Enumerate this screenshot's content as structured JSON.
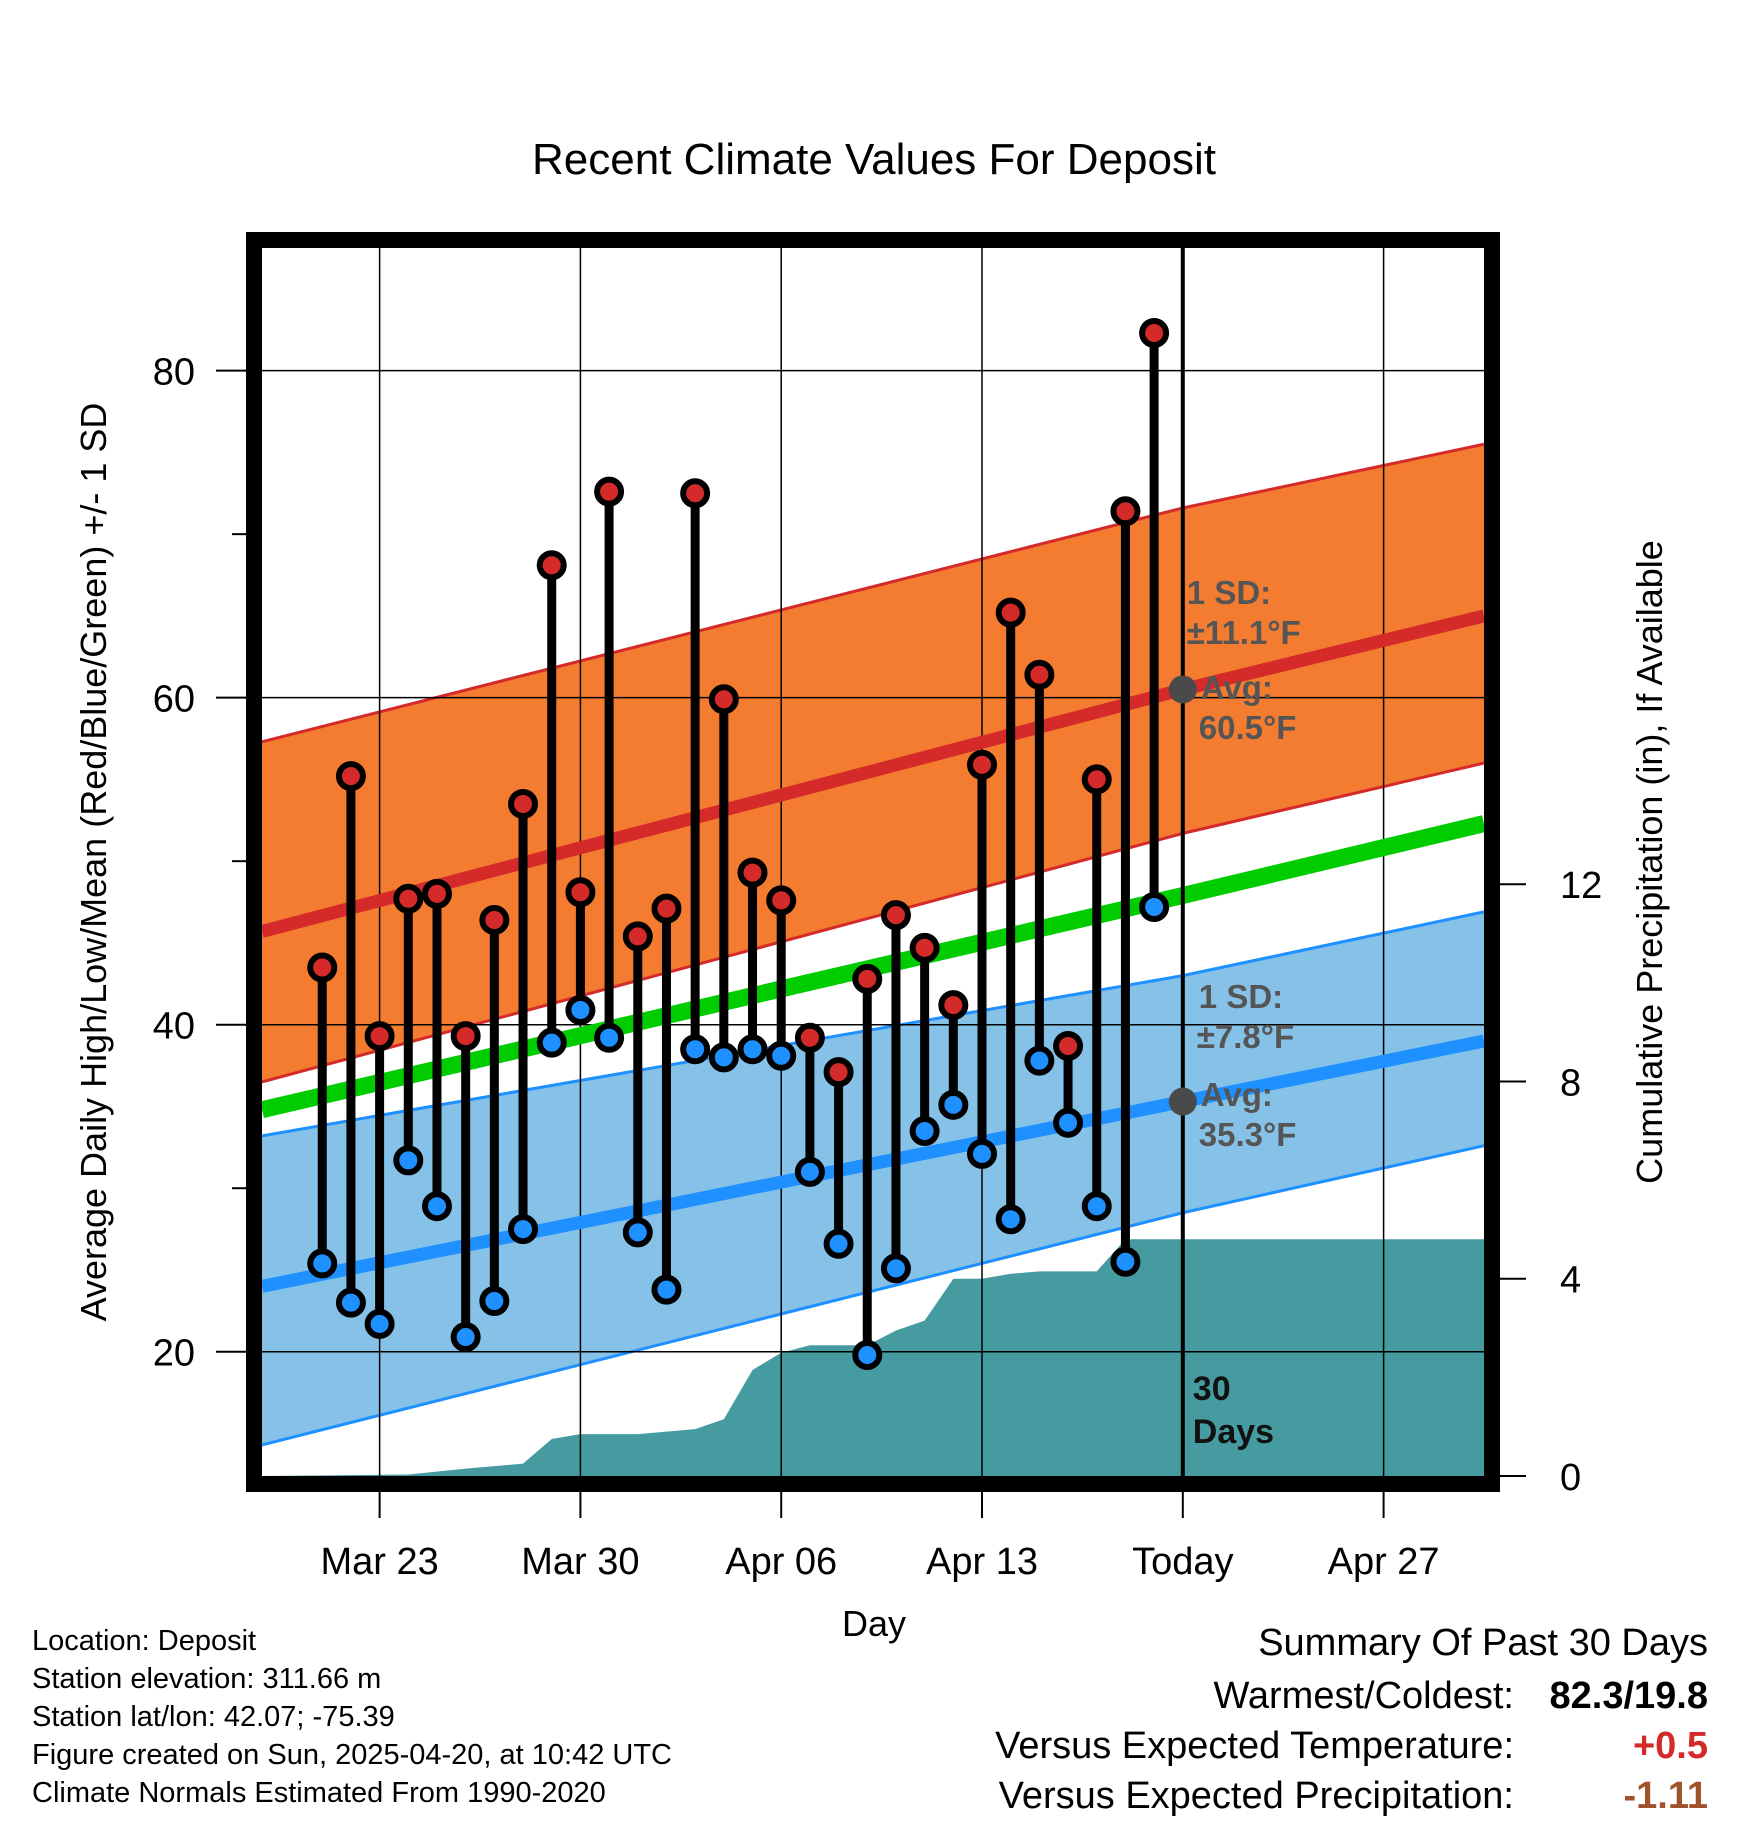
{
  "chart_data": {
    "type": "line",
    "title": "Recent Climate Values For Deposit",
    "xlabel": "Day",
    "ylabel": "Average Daily High/Low/Mean (Red/Blue/Green) +/- 1 SD",
    "ylabel_right": "Cumulative Precipitation (in), If Available",
    "ylim": [
      12.4,
      87.5
    ],
    "yticks": [
      20,
      40,
      60,
      80
    ],
    "ylim_right": [
      0,
      24.9
    ],
    "yticks_right": [
      0,
      4,
      8,
      12
    ],
    "xlim_days": [
      -32.1,
      10.5
    ],
    "x_ticks": [
      {
        "day": -28,
        "label": "Mar 23"
      },
      {
        "day": -21,
        "label": "Mar 30"
      },
      {
        "day": -14,
        "label": "Apr 06"
      },
      {
        "day": -7,
        "label": "Apr 13"
      },
      {
        "day": 0,
        "label": "Today"
      },
      {
        "day": 7,
        "label": "Apr 27"
      }
    ],
    "grid": true,
    "days": [
      -30,
      -29,
      -28,
      -27,
      -26,
      -25,
      -24,
      -23,
      -22,
      -21,
      -20,
      -19,
      -18,
      -17,
      -16,
      -15,
      -14,
      -13,
      -12,
      -11,
      -10,
      -9,
      -8,
      -7,
      -6,
      -5,
      -4,
      -3,
      -2,
      -1
    ],
    "daily_high": [
      43.5,
      55.2,
      39.3,
      47.7,
      48.0,
      39.3,
      46.4,
      53.5,
      68.1,
      48.1,
      72.6,
      45.4,
      47.1,
      72.5,
      59.9,
      49.3,
      47.6,
      39.2,
      37.1,
      42.8,
      46.7,
      44.7,
      41.2,
      55.9,
      65.2,
      61.4,
      38.7,
      55.0,
      71.4,
      82.3
    ],
    "daily_low": [
      25.4,
      23.0,
      21.7,
      31.7,
      28.9,
      20.9,
      23.1,
      27.5,
      38.9,
      40.9,
      39.2,
      27.3,
      23.8,
      38.5,
      38.0,
      38.5,
      38.1,
      31.0,
      26.6,
      19.8,
      25.1,
      33.5,
      35.1,
      32.1,
      28.1,
      37.8,
      34.0,
      28.9,
      25.5,
      47.2
    ],
    "normals": {
      "days": [
        -32.1,
        0,
        10.5
      ],
      "high_mean": [
        45.7,
        60.5,
        65.0
      ],
      "high_upper": [
        57.3,
        71.6,
        75.5
      ],
      "high_lower": [
        36.5,
        51.7,
        56.0
      ],
      "mean": [
        34.8,
        47.9,
        52.3
      ],
      "low_mean": [
        24.0,
        35.3,
        39.0
      ],
      "low_upper": [
        33.2,
        43.0,
        46.9
      ],
      "low_lower": [
        14.3,
        28.5,
        32.6
      ]
    },
    "precip_days": [
      -32.1,
      -27,
      -25,
      -23,
      -22,
      -21,
      -19,
      -17,
      -16,
      -15,
      -14,
      -13,
      -11,
      -10,
      -9,
      -8,
      -7,
      -6,
      -5,
      -4,
      -3,
      -2,
      -1,
      0,
      10.5
    ],
    "precip_cumulative": [
      0,
      0.03,
      0.15,
      0.25,
      0.75,
      0.85,
      0.85,
      0.95,
      1.15,
      2.15,
      2.5,
      2.65,
      2.65,
      2.95,
      3.15,
      4.0,
      4.0,
      4.1,
      4.15,
      4.15,
      4.15,
      4.8,
      4.8,
      4.8,
      4.8
    ],
    "colors": {
      "high": "#d42a2a",
      "low": "#1e90ff",
      "mean": "#00cc00",
      "high_band": "#f47c30",
      "low_band": "#86c2e8",
      "precip": "#469ba1",
      "avg_marker": "#4a4a4a",
      "warm_anomaly": "#d42a2a",
      "precip_anomaly": "#a0522d"
    },
    "annotations": {
      "high_sd_title": "1 SD:",
      "high_sd_value": "±11.1°F",
      "high_avg_title": "Avg:",
      "high_avg_value": "60.5°F",
      "low_sd_title": "1 SD:",
      "low_sd_value": "±7.8°F",
      "low_avg_title": "Avg:",
      "low_avg_value": "35.3°F",
      "days_line1": "30",
      "days_line2": "Days"
    }
  },
  "info": {
    "location": "Location: Deposit",
    "elevation": "Station elevation: 311.66 m",
    "latlon": "Station lat/lon: 42.07; -75.39",
    "created": "Figure created on Sun, 2025-04-20, at 10:42 UTC",
    "normals": "Climate Normals Estimated From 1990-2020"
  },
  "summary": {
    "title": "Summary Of Past 30 Days",
    "warmest_label": "Warmest/Coldest:",
    "warmest_value": "82.3/19.8",
    "temp_label": "Versus Expected Temperature:",
    "temp_value": "+0.5",
    "precip_label": "Versus Expected Precipitation:",
    "precip_value": "-1.11"
  }
}
